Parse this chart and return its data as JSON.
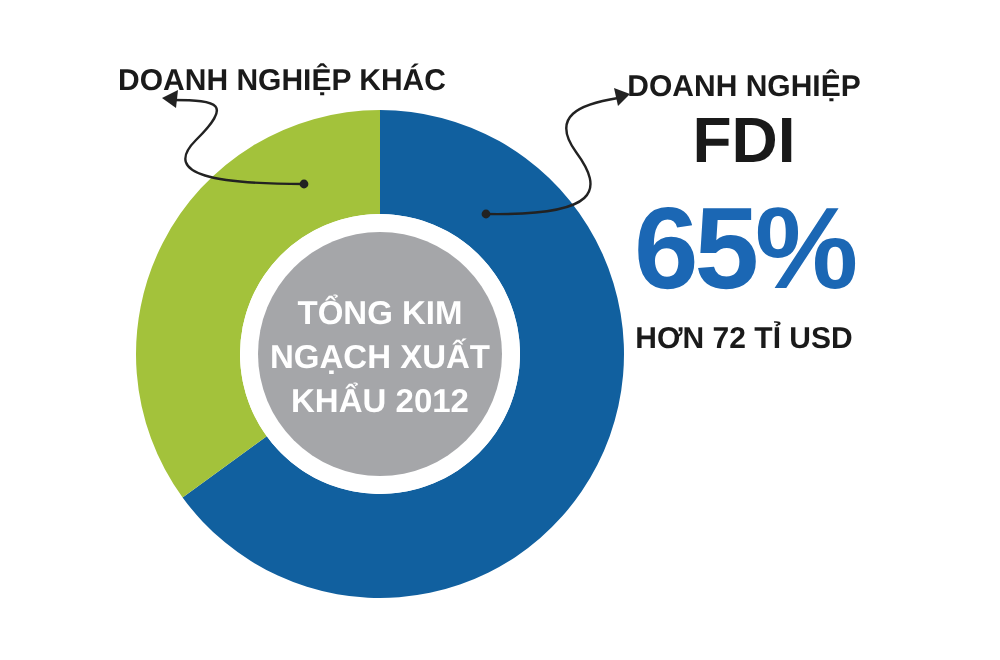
{
  "chart_data": {
    "type": "donut",
    "title": "TỔNG KIM NGẠCH XUẤT KHẨU 2012",
    "categories": [
      "DOANH NGHIỆP FDI",
      "DOANH NGHIỆP KHÁC"
    ],
    "values": [
      65,
      35
    ],
    "colors": [
      "#11609f",
      "#a3c23b"
    ],
    "value_labels": [
      "65%",
      null
    ],
    "annotations": [
      "HƠN 72 TỈ USD"
    ]
  }
}
